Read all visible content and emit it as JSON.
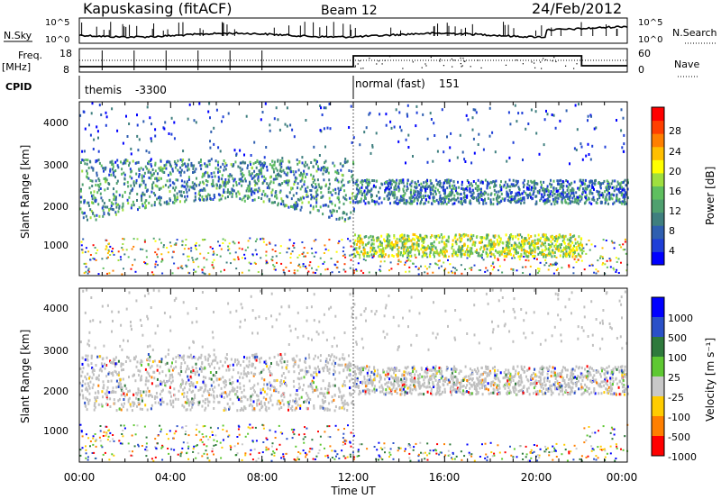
{
  "header": {
    "station": "Kapuskasing (fitACF)",
    "beam": "Beam 12",
    "date": "24/Feb/2012"
  },
  "status_panels": {
    "nsky_label": "N.Sky",
    "nsky_ticks": [
      "10^5",
      "10^0"
    ],
    "nsearch_label": "N.Search",
    "nsearch_ticks": [
      "10^5",
      "10^0"
    ],
    "freq_label_1": "Freq.",
    "freq_label_2": "[MHz]",
    "freq_ticks": [
      "18",
      "8"
    ],
    "nave_label": "Nave",
    "nave_ticks": [
      "60",
      "0"
    ],
    "cpid_label": "CPID",
    "cpid_modes": [
      {
        "name": "themis",
        "id": "-3300",
        "start": 0,
        "end": 12
      },
      {
        "name": "normal (fast)",
        "id": "151",
        "start": 12,
        "end": 24
      }
    ]
  },
  "x_axis": {
    "label": "Time UT",
    "ticks": [
      "00:00",
      "04:00",
      "08:00",
      "12:00",
      "16:00",
      "20:00",
      "00:00"
    ],
    "range_hours": [
      0,
      24
    ]
  },
  "panels": {
    "power": {
      "ylabel": "Slant Range [km]",
      "yticks": [
        "4000",
        "3000",
        "2000",
        "1000"
      ],
      "colorbar_label": "Power [dB]",
      "colorbar_ticks": [
        "28",
        "24",
        "20",
        "16",
        "12",
        "8",
        "4"
      ]
    },
    "velocity": {
      "ylabel": "Slant Range [km]",
      "yticks": [
        "4000",
        "3000",
        "2000",
        "1000"
      ],
      "colorbar_label": "Velocity  [m s⁻¹]",
      "colorbar_ticks": [
        "1000",
        "500",
        "100",
        "25",
        "-25",
        "-100",
        "-500",
        "-1000"
      ]
    }
  },
  "colors": {
    "power_scale": [
      "#0000ff",
      "#1f3fd8",
      "#2f5fb0",
      "#3f7f7f",
      "#4fa06f",
      "#5fbf5f",
      "#9fdf3f",
      "#ffff00",
      "#ffbf00",
      "#ff7f00",
      "#ff3f00",
      "#ff0000"
    ],
    "velocity_scale": [
      "#0000ff",
      "#2a50c8",
      "#2e7a3c",
      "#5ec832",
      "#c8c8c8",
      "#ffcc00",
      "#ff7f00",
      "#ff0000"
    ],
    "ground_scatter": "#c0c0c0"
  },
  "chart_data": {
    "type": "heatmap",
    "title": "Kapuskasing (fitACF)  Beam 12  24/Feb/2012",
    "x_range_hours": [
      0,
      24
    ],
    "y_range_km": [
      200,
      4500
    ],
    "scatter_regions_approx": [
      {
        "panel": "power",
        "start_h": 0,
        "end_h": 12,
        "range_km": [
          1500,
          3200
        ],
        "typical_db": 10,
        "note": "ionospheric scatter band"
      },
      {
        "panel": "power",
        "start_h": 12,
        "end_h": 24,
        "range_km": [
          2000,
          2600
        ],
        "typical_db": 8
      },
      {
        "panel": "power",
        "start_h": 12,
        "end_h": 22,
        "range_km": [
          700,
          1250
        ],
        "typical_db": 18
      },
      {
        "panel": "velocity",
        "start_h": 0,
        "end_h": 12,
        "range_km": [
          1500,
          2900
        ],
        "note": "mostly ground scatter"
      },
      {
        "panel": "velocity",
        "start_h": 12,
        "end_h": 24,
        "range_km": [
          1900,
          2600
        ],
        "note": "ground scatter"
      }
    ]
  }
}
